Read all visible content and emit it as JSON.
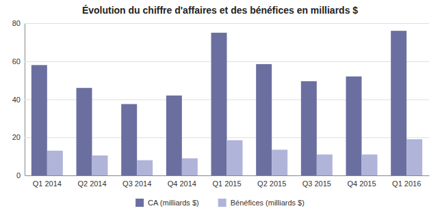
{
  "chart_data": {
    "type": "bar",
    "title": "Évolution du chiffre d'affaires et des bénéfices en milliards $",
    "categories": [
      "Q1 2014",
      "Q2 2014",
      "Q3 2014",
      "Q4 2014",
      "Q1 2015",
      "Q2 2015",
      "Q3 2015",
      "Q4 2015",
      "Q1 2016"
    ],
    "series": [
      {
        "name": "CA (milliards $)",
        "color": "#6b6fa0",
        "values": [
          58,
          46,
          37.5,
          42,
          75,
          58.5,
          49.5,
          52,
          76
        ]
      },
      {
        "name": "Bénéfices (milliards $)",
        "color": "#b0b4d8",
        "values": [
          13,
          10.5,
          8,
          9,
          18.5,
          13.5,
          11,
          11,
          19
        ]
      }
    ],
    "ylim": [
      0,
      80
    ],
    "yticks": [
      0,
      20,
      40,
      60,
      80
    ],
    "grid": true,
    "legend": "bottom"
  }
}
